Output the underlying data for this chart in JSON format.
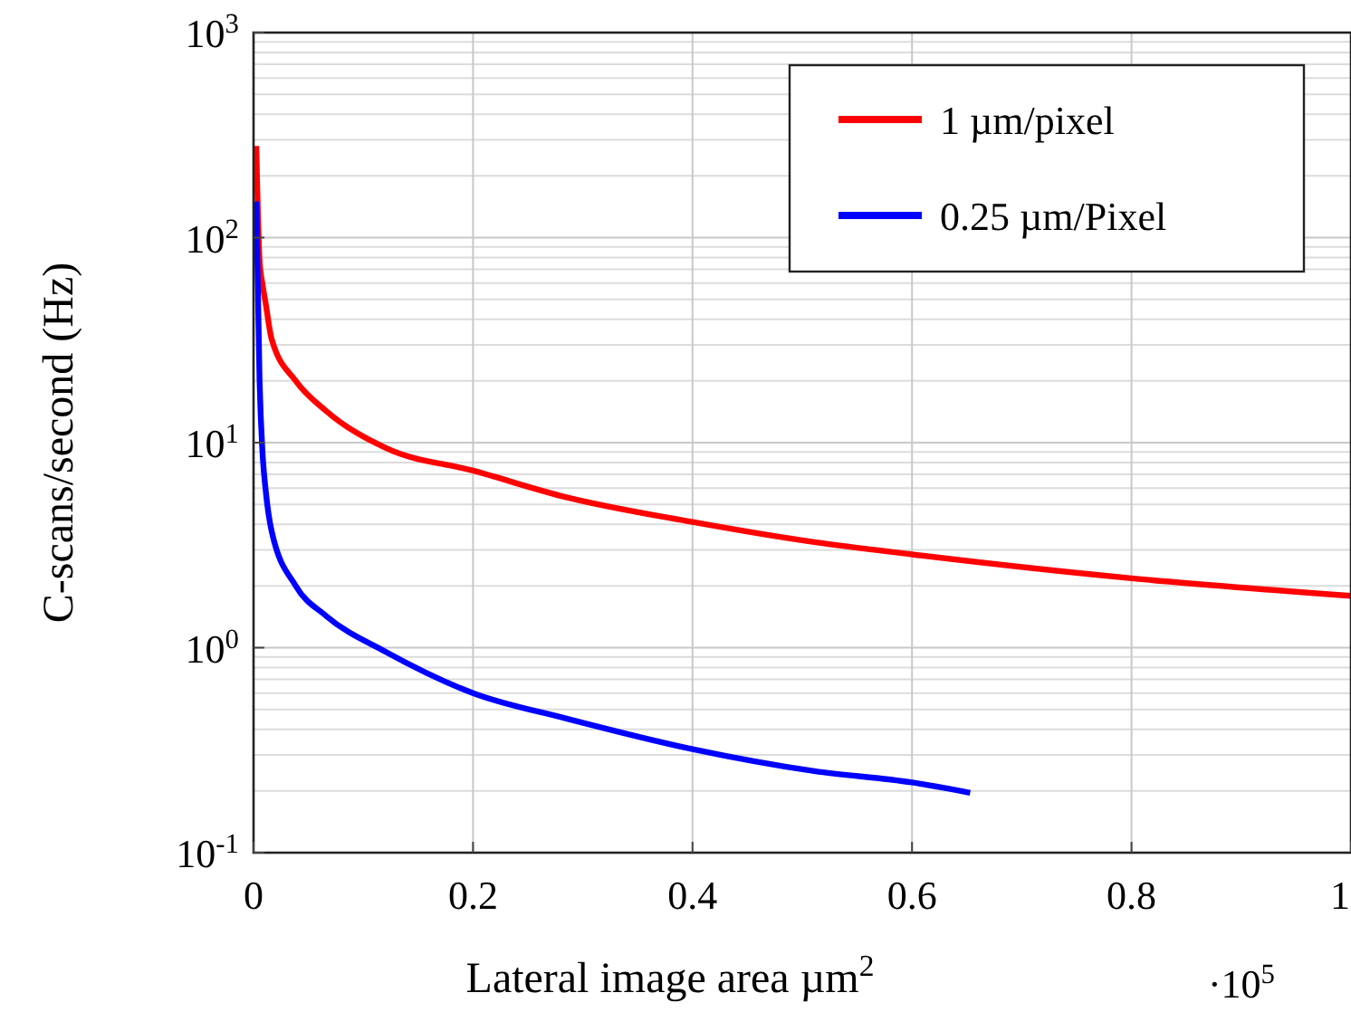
{
  "chart_data": {
    "type": "line",
    "xlabel": "Lateral image area µm$^{2}$",
    "ylabel": "C-scans/second (Hz)",
    "annotations": [
      "·10$^{5}$"
    ],
    "xlim": [
      0,
      1
    ],
    "ylim": [
      0.1,
      1000
    ],
    "log": "y",
    "grid": true,
    "legend": "top right",
    "line_style": "solid",
    "xticks": [
      0,
      0.2,
      0.4,
      0.6,
      0.8,
      1
    ],
    "yticks": [
      {
        "value": 0.1,
        "label": "10$^{-1}$"
      },
      {
        "value": 1,
        "label": "10$^{0}$"
      },
      {
        "value": 10,
        "label": "10$^{1}$"
      },
      {
        "value": 100,
        "label": "10$^{2}$"
      },
      {
        "value": 1000,
        "label": "10$^{3}$"
      }
    ],
    "series": [
      {
        "name": "1 µm/pixel",
        "color": "#ff0000",
        "x": [
          0.0025,
          0.0055,
          0.0082,
          0.011,
          0.0165,
          0.0385,
          0.066,
          0.121,
          0.2,
          0.286,
          0.4,
          0.511,
          0.6,
          0.8,
          1.0
        ],
        "values": [
          280,
          77,
          59,
          48,
          32,
          20,
          14.3,
          9.4,
          7.3,
          5.4,
          4.1,
          3.27,
          2.85,
          2.18,
          1.79
        ]
      },
      {
        "name": "0.25 µm/Pixel",
        "color": "#0000ff",
        "x": [
          0.0025,
          0.0055,
          0.0082,
          0.011,
          0.0165,
          0.0385,
          0.066,
          0.121,
          0.2,
          0.286,
          0.4,
          0.511,
          0.6,
          0.653
        ],
        "values": [
          150,
          20,
          8.9,
          5.9,
          3.7,
          2.0,
          1.43,
          0.95,
          0.6,
          0.45,
          0.32,
          0.25,
          0.22,
          0.196
        ]
      }
    ]
  }
}
